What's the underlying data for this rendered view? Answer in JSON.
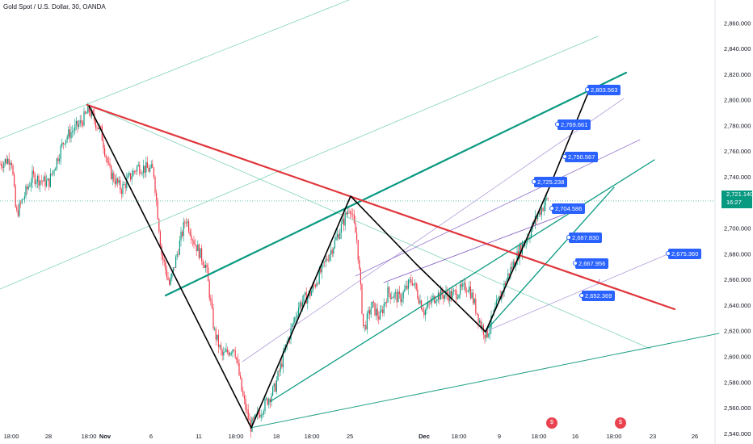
{
  "header": {
    "title": "Gold Spot / U.S. Dollar, 30, OANDA"
  },
  "price_tag": {
    "price": "2,721.140",
    "countdown": "16:27"
  },
  "price_labels": [
    {
      "text": "2,803.563"
    },
    {
      "text": "2,769.661"
    },
    {
      "text": "2,750.567"
    },
    {
      "text": "2,725.238"
    },
    {
      "text": "2,704.586"
    },
    {
      "text": "2,687.830"
    },
    {
      "text": "2,667.956"
    },
    {
      "text": "2,675.360"
    },
    {
      "text": "2,652.369"
    }
  ],
  "colors": {
    "red_line": "#e0363b",
    "teal_line": "#089981",
    "zigzag": "#000000",
    "purple": "#9c6ee8",
    "label_bg": "#2962ff"
  },
  "chart_data": {
    "type": "candlestick",
    "title": "Gold Spot / U.S. Dollar, 30, OANDA",
    "y_ticks": [
      "2,860.000",
      "2,840.000",
      "2,820.000",
      "2,800.000",
      "2,780.000",
      "2,760.000",
      "2,740.000",
      "2,720.000",
      "2,700.000",
      "2,680.000",
      "2,660.000",
      "2,640.000",
      "2,620.000",
      "2,600.000",
      "2,580.000",
      "2,560.000",
      "2,540.000"
    ],
    "x_ticks": [
      "18:00",
      "28",
      "18:00",
      "Nov",
      "6",
      "11",
      "18:00",
      "18",
      "18:00",
      "25",
      "Dec",
      "18:00",
      "9",
      "18:00",
      "16",
      "18:00",
      "23",
      "26"
    ],
    "ylim": [
      2533,
      2874
    ],
    "current_price": 2721.14,
    "zigzag_points": [
      2792,
      2540,
      2720,
      2614,
      2725,
      2803.563
    ],
    "events": [
      "US-event",
      "US-event"
    ]
  }
}
